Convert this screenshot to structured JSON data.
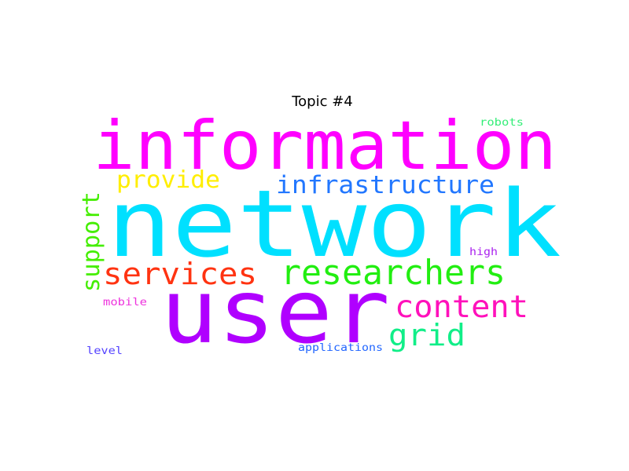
{
  "title": "Topic #4",
  "words": [
    {
      "text": "network",
      "color": "#00e0ff"
    },
    {
      "text": "information",
      "color": "#ff00ff"
    },
    {
      "text": "user",
      "color": "#b000ff"
    },
    {
      "text": "researchers",
      "color": "#22ee11"
    },
    {
      "text": "services",
      "color": "#ff3311"
    },
    {
      "text": "infrastructure",
      "color": "#2277ff"
    },
    {
      "text": "content",
      "color": "#ff11bb"
    },
    {
      "text": "grid",
      "color": "#11ee88"
    },
    {
      "text": "provide",
      "color": "#ffee00"
    },
    {
      "text": "support",
      "color": "#44ee00"
    },
    {
      "text": "robots",
      "color": "#33ee77"
    },
    {
      "text": "high",
      "color": "#aa22ee"
    },
    {
      "text": "mobile",
      "color": "#ee33dd"
    },
    {
      "text": "applications",
      "color": "#2266ff"
    },
    {
      "text": "level",
      "color": "#5544ff"
    }
  ]
}
